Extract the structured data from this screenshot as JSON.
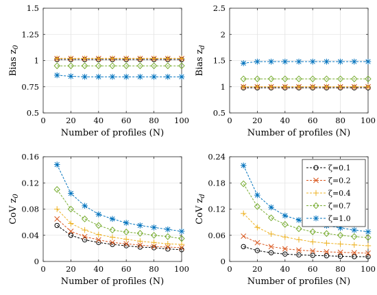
{
  "chart_data": [
    {
      "type": "line",
      "xlabel": "Number of profiles (N)",
      "ylabel_main": "Bias z",
      "ylabel_sub": "0",
      "xlim": [
        0,
        100
      ],
      "ylim": [
        0.5,
        1.5
      ],
      "xticks": [
        0,
        20,
        40,
        60,
        80,
        100
      ],
      "yticks": [
        0.5,
        0.75,
        1,
        1.25,
        1.5
      ],
      "ytick_labels": [
        "0.5",
        "0.75",
        "1",
        "1.25",
        "1.5"
      ],
      "grid": true,
      "x": [
        10,
        20,
        30,
        40,
        50,
        60,
        70,
        80,
        90,
        100
      ],
      "series": [
        {
          "values": [
            1.01,
            1.01,
            1.01,
            1.01,
            1.01,
            1.01,
            1.01,
            1.01,
            1.01,
            1.01
          ]
        },
        {
          "values": [
            1.02,
            1.02,
            1.02,
            1.02,
            1.02,
            1.02,
            1.02,
            1.02,
            1.02,
            1.02
          ]
        },
        {
          "values": [
            1.02,
            1.02,
            1.02,
            1.02,
            1.02,
            1.02,
            1.02,
            1.02,
            1.02,
            1.02
          ]
        },
        {
          "values": [
            0.95,
            0.95,
            0.95,
            0.95,
            0.95,
            0.95,
            0.95,
            0.95,
            0.95,
            0.95
          ]
        },
        {
          "values": [
            0.86,
            0.85,
            0.845,
            0.845,
            0.845,
            0.845,
            0.845,
            0.845,
            0.845,
            0.845
          ]
        }
      ]
    },
    {
      "type": "line",
      "xlabel": "Number of profiles (N)",
      "ylabel_main": "Bias z",
      "ylabel_sub": "d",
      "xlim": [
        0,
        100
      ],
      "ylim": [
        0.5,
        2.5
      ],
      "xticks": [
        0,
        20,
        40,
        60,
        80,
        100
      ],
      "yticks": [
        0.5,
        1,
        1.5,
        2,
        2.5
      ],
      "ytick_labels": [
        "0.5",
        "1",
        "1.5",
        "2",
        "2.5"
      ],
      "grid": true,
      "x": [
        10,
        20,
        30,
        40,
        50,
        60,
        70,
        80,
        90,
        100
      ],
      "series": [
        {
          "values": [
            0.98,
            0.98,
            0.98,
            0.98,
            0.98,
            0.98,
            0.98,
            0.98,
            0.98,
            0.98
          ]
        },
        {
          "values": [
            1.0,
            1.0,
            1.0,
            1.0,
            1.0,
            1.0,
            1.0,
            1.0,
            1.0,
            1.0
          ]
        },
        {
          "values": [
            1.0,
            1.0,
            1.0,
            1.0,
            1.0,
            1.0,
            1.0,
            1.0,
            1.0,
            1.0
          ]
        },
        {
          "values": [
            1.15,
            1.15,
            1.15,
            1.15,
            1.15,
            1.15,
            1.15,
            1.15,
            1.15,
            1.15
          ]
        },
        {
          "values": [
            1.45,
            1.48,
            1.48,
            1.48,
            1.48,
            1.48,
            1.48,
            1.48,
            1.48,
            1.48
          ]
        }
      ]
    },
    {
      "type": "line",
      "xlabel": "Number of profiles (N)",
      "ylabel_main": "CoV z",
      "ylabel_sub": "0",
      "xlim": [
        0,
        100
      ],
      "ylim": [
        0,
        0.16
      ],
      "xticks": [
        0,
        20,
        40,
        60,
        80,
        100
      ],
      "yticks": [
        0,
        0.04,
        0.08,
        0.12,
        0.16
      ],
      "ytick_labels": [
        "0",
        "0.04",
        "0.08",
        "0.12",
        "0.16"
      ],
      "grid": true,
      "x": [
        10,
        20,
        30,
        40,
        50,
        60,
        70,
        80,
        90,
        100
      ],
      "series": [
        {
          "values": [
            0.055,
            0.04,
            0.033,
            0.029,
            0.026,
            0.024,
            0.022,
            0.021,
            0.019,
            0.018
          ]
        },
        {
          "values": [
            0.065,
            0.046,
            0.038,
            0.033,
            0.029,
            0.027,
            0.025,
            0.023,
            0.022,
            0.021
          ]
        },
        {
          "values": [
            0.08,
            0.058,
            0.048,
            0.041,
            0.037,
            0.034,
            0.031,
            0.029,
            0.027,
            0.026
          ]
        },
        {
          "values": [
            0.11,
            0.08,
            0.065,
            0.055,
            0.048,
            0.045,
            0.043,
            0.04,
            0.038,
            0.035
          ]
        },
        {
          "values": [
            0.148,
            0.104,
            0.085,
            0.072,
            0.065,
            0.059,
            0.055,
            0.052,
            0.049,
            0.046
          ]
        }
      ]
    },
    {
      "type": "line",
      "xlabel": "Number of profiles (N)",
      "ylabel_main": "CoV z",
      "ylabel_sub": "d",
      "xlim": [
        0,
        100
      ],
      "ylim": [
        0,
        0.24
      ],
      "xticks": [
        0,
        20,
        40,
        60,
        80,
        100
      ],
      "yticks": [
        0,
        0.06,
        0.12,
        0.18,
        0.24
      ],
      "ytick_labels": [
        "0",
        "0.06",
        "0.12",
        "0.18",
        "0.24"
      ],
      "grid": true,
      "x": [
        10,
        20,
        30,
        40,
        50,
        60,
        70,
        80,
        90,
        100
      ],
      "legend": {
        "placement": "top-right",
        "entries": [
          "ζ=0.1",
          "ζ=0.2",
          "ζ=0.4",
          "ζ=0.7",
          "ζ=1.0"
        ]
      },
      "series": [
        {
          "name": "ζ=0.1",
          "values": [
            0.034,
            0.025,
            0.02,
            0.017,
            0.015,
            0.014,
            0.013,
            0.012,
            0.011,
            0.011
          ]
        },
        {
          "name": "ζ=0.2",
          "values": [
            0.058,
            0.043,
            0.034,
            0.029,
            0.026,
            0.024,
            0.022,
            0.021,
            0.02,
            0.019
          ]
        },
        {
          "name": "ζ=0.4",
          "values": [
            0.11,
            0.078,
            0.063,
            0.056,
            0.05,
            0.045,
            0.042,
            0.04,
            0.038,
            0.036
          ]
        },
        {
          "name": "ζ=0.7",
          "values": [
            0.178,
            0.126,
            0.1,
            0.085,
            0.075,
            0.068,
            0.064,
            0.06,
            0.057,
            0.055
          ]
        },
        {
          "name": "ζ=1.0",
          "values": [
            0.22,
            0.152,
            0.124,
            0.105,
            0.095,
            0.087,
            0.082,
            0.077,
            0.072,
            0.068
          ]
        }
      ]
    }
  ],
  "series_styles": [
    {
      "color": "#000000",
      "marker": "circle"
    },
    {
      "color": "#d95319",
      "marker": "x"
    },
    {
      "color": "#edb120",
      "marker": "plus"
    },
    {
      "color": "#77ac30",
      "marker": "diamond"
    },
    {
      "color": "#0072bd",
      "marker": "asterisk"
    }
  ]
}
